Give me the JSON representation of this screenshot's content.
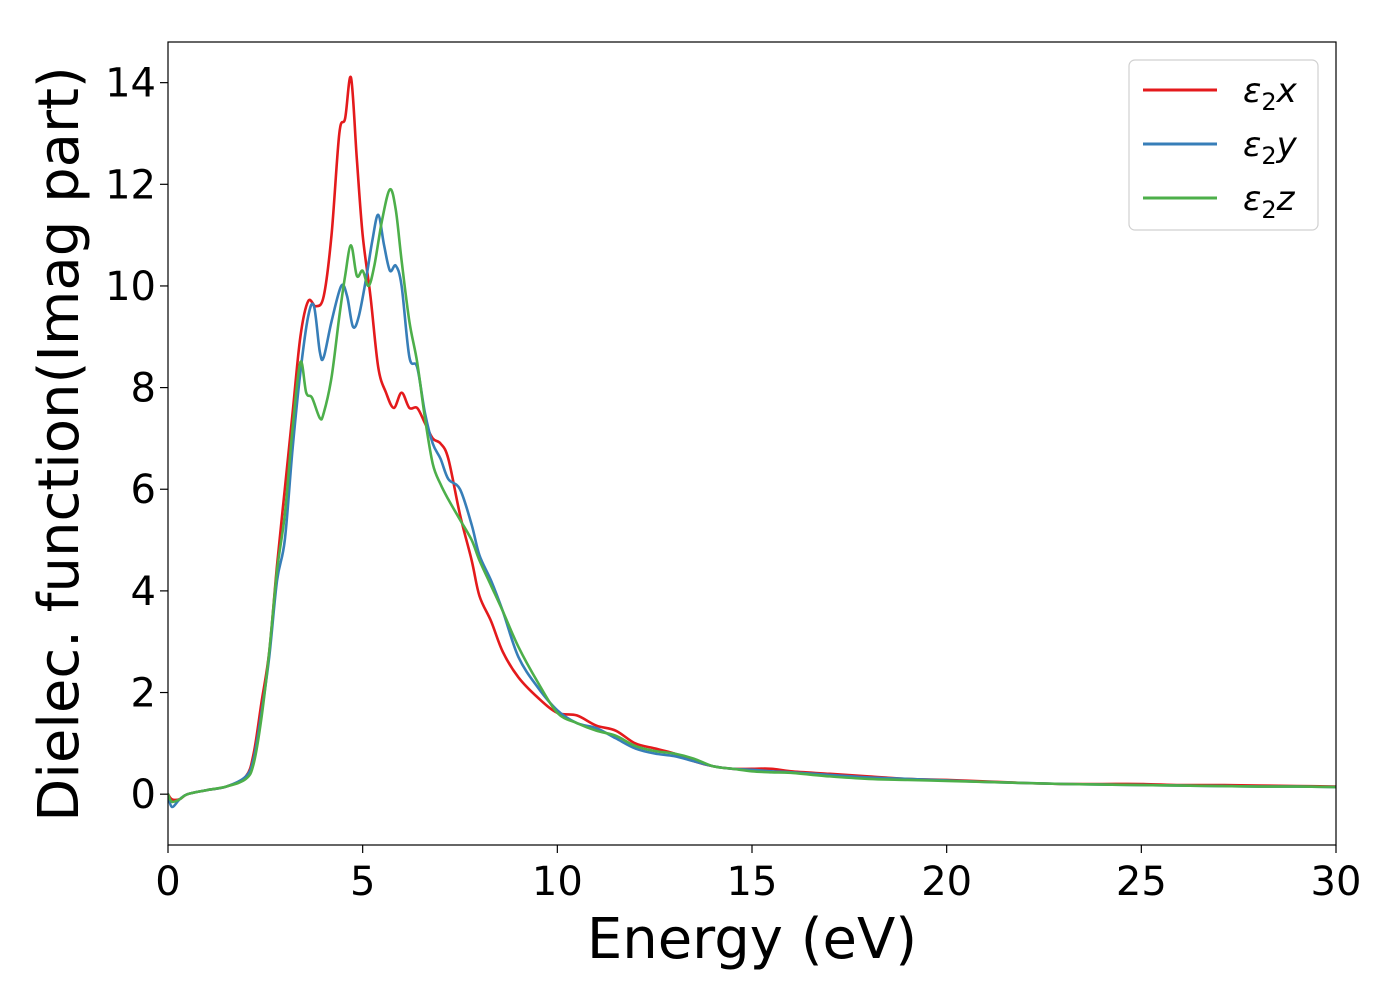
{
  "chart_data": {
    "type": "line",
    "title": "",
    "xlabel": "Energy (eV)",
    "ylabel": "Dielec. function(Imag part)",
    "xlim": [
      0,
      30
    ],
    "ylim": [
      -1,
      14.8
    ],
    "xticks": [
      0,
      5,
      10,
      15,
      20,
      25,
      30
    ],
    "yticks": [
      0,
      2,
      4,
      6,
      8,
      10,
      12,
      14
    ],
    "xtick_labels": [
      "0",
      "5",
      "10",
      "15",
      "20",
      "25",
      "30"
    ],
    "ytick_labels": [
      "0",
      "2",
      "4",
      "6",
      "8",
      "10",
      "12",
      "14"
    ],
    "grid": false,
    "legend_position": "top-right",
    "series": [
      {
        "name": "ε₂x",
        "legend": {
          "base": "ε",
          "sub": "2",
          "suffix": "x"
        },
        "color": "#e41a1c",
        "x": [
          0,
          0.1,
          0.3,
          0.5,
          1.0,
          1.5,
          2.0,
          2.2,
          2.4,
          2.6,
          2.8,
          3.0,
          3.2,
          3.4,
          3.6,
          3.8,
          4.0,
          4.2,
          4.4,
          4.55,
          4.7,
          4.85,
          5.0,
          5.2,
          5.4,
          5.6,
          5.8,
          6.0,
          6.2,
          6.4,
          6.6,
          6.8,
          7.0,
          7.2,
          7.5,
          7.8,
          8.0,
          8.3,
          8.6,
          9.0,
          9.5,
          10.0,
          10.5,
          11.0,
          11.5,
          12.0,
          12.5,
          13.0,
          13.5,
          14.0,
          14.5,
          15.0,
          15.5,
          16.0,
          17.0,
          18.0,
          19.0,
          20.0,
          21.0,
          22.0,
          23.0,
          24.0,
          25.0,
          26.0,
          27.0,
          28.0,
          29.0,
          30.0
        ],
        "y": [
          0.0,
          -0.1,
          -0.1,
          0.0,
          0.08,
          0.15,
          0.35,
          0.8,
          1.8,
          2.8,
          4.5,
          6.0,
          7.5,
          9.0,
          9.7,
          9.6,
          9.8,
          11.0,
          13.0,
          13.3,
          14.1,
          12.5,
          11.0,
          9.8,
          8.4,
          7.9,
          7.6,
          7.9,
          7.6,
          7.6,
          7.3,
          7.0,
          6.9,
          6.6,
          5.5,
          4.6,
          3.9,
          3.4,
          2.8,
          2.3,
          1.9,
          1.6,
          1.55,
          1.35,
          1.25,
          1.0,
          0.9,
          0.8,
          0.65,
          0.55,
          0.5,
          0.5,
          0.5,
          0.45,
          0.4,
          0.35,
          0.3,
          0.28,
          0.25,
          0.22,
          0.2,
          0.2,
          0.2,
          0.18,
          0.18,
          0.17,
          0.16,
          0.15
        ]
      },
      {
        "name": "ε₂y",
        "legend": {
          "base": "ε",
          "sub": "2",
          "suffix": "y"
        },
        "color": "#377eb8",
        "x": [
          0,
          0.1,
          0.3,
          0.5,
          1.0,
          1.5,
          2.0,
          2.2,
          2.4,
          2.6,
          2.8,
          3.0,
          3.2,
          3.4,
          3.6,
          3.75,
          3.9,
          4.0,
          4.2,
          4.45,
          4.6,
          4.75,
          4.9,
          5.1,
          5.25,
          5.4,
          5.55,
          5.7,
          5.85,
          6.0,
          6.2,
          6.4,
          6.6,
          6.8,
          7.0,
          7.2,
          7.5,
          7.8,
          8.0,
          8.3,
          8.6,
          9.0,
          9.5,
          10.0,
          10.5,
          11.0,
          11.5,
          12.0,
          12.5,
          13.0,
          13.5,
          14.0,
          14.5,
          15.0,
          15.5,
          16.0,
          17.0,
          18.0,
          19.0,
          20.0,
          21.0,
          22.0,
          23.0,
          24.0,
          25.0,
          26.0,
          27.0,
          28.0,
          29.0,
          30.0
        ],
        "y": [
          0.0,
          -0.25,
          -0.1,
          0.0,
          0.08,
          0.15,
          0.35,
          0.7,
          1.6,
          2.7,
          4.2,
          5.0,
          6.8,
          8.3,
          9.4,
          9.6,
          8.7,
          8.6,
          9.3,
          10.0,
          9.8,
          9.2,
          9.4,
          10.2,
          10.9,
          11.4,
          10.8,
          10.3,
          10.4,
          10.0,
          8.6,
          8.4,
          7.5,
          6.9,
          6.6,
          6.2,
          6.0,
          5.3,
          4.7,
          4.2,
          3.6,
          2.7,
          2.1,
          1.65,
          1.4,
          1.3,
          1.1,
          0.9,
          0.8,
          0.75,
          0.65,
          0.55,
          0.5,
          0.48,
          0.45,
          0.43,
          0.38,
          0.33,
          0.3,
          0.27,
          0.24,
          0.22,
          0.2,
          0.19,
          0.18,
          0.17,
          0.16,
          0.15,
          0.15,
          0.14
        ]
      },
      {
        "name": "ε₂z",
        "legend": {
          "base": "ε",
          "sub": "2",
          "suffix": "z"
        },
        "color": "#4daf4a",
        "x": [
          0,
          0.1,
          0.3,
          0.5,
          1.0,
          1.5,
          2.0,
          2.2,
          2.4,
          2.6,
          2.8,
          3.0,
          3.2,
          3.4,
          3.55,
          3.7,
          3.9,
          4.0,
          4.2,
          4.4,
          4.55,
          4.7,
          4.85,
          5.0,
          5.15,
          5.3,
          5.5,
          5.7,
          5.85,
          6.0,
          6.2,
          6.4,
          6.6,
          6.8,
          7.0,
          7.2,
          7.5,
          7.8,
          8.0,
          8.3,
          8.6,
          9.0,
          9.5,
          10.0,
          10.5,
          11.0,
          11.5,
          12.0,
          12.5,
          13.0,
          13.5,
          14.0,
          14.5,
          15.0,
          15.5,
          16.0,
          17.0,
          18.0,
          19.0,
          20.0,
          21.0,
          22.0,
          23.0,
          24.0,
          25.0,
          26.0,
          27.0,
          28.0,
          29.0,
          30.0
        ],
        "y": [
          0.0,
          -0.15,
          -0.1,
          0.0,
          0.08,
          0.15,
          0.3,
          0.6,
          1.5,
          2.8,
          4.4,
          5.5,
          7.2,
          8.5,
          7.9,
          7.8,
          7.4,
          7.5,
          8.2,
          9.4,
          10.2,
          10.8,
          10.2,
          10.3,
          10.0,
          10.4,
          11.3,
          11.9,
          11.5,
          10.5,
          9.3,
          8.5,
          7.4,
          6.5,
          6.1,
          5.8,
          5.4,
          5.0,
          4.6,
          4.1,
          3.6,
          2.9,
          2.2,
          1.6,
          1.4,
          1.25,
          1.15,
          0.95,
          0.85,
          0.8,
          0.7,
          0.55,
          0.5,
          0.45,
          0.43,
          0.42,
          0.35,
          0.3,
          0.28,
          0.26,
          0.24,
          0.22,
          0.2,
          0.19,
          0.18,
          0.17,
          0.16,
          0.15,
          0.15,
          0.14
        ]
      }
    ]
  }
}
